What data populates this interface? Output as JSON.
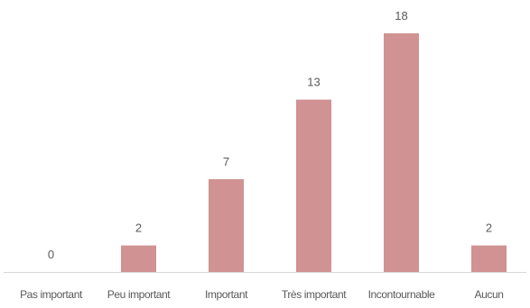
{
  "chart_data": {
    "type": "bar",
    "categories": [
      "Pas important",
      "Peu important",
      "Important",
      "Très important",
      "Incontournable",
      "Aucun"
    ],
    "values": [
      0,
      2,
      7,
      13,
      18,
      2
    ],
    "title": "",
    "xlabel": "",
    "ylabel": "",
    "ylim": [
      0,
      18
    ],
    "grid": false,
    "legend": "none",
    "data_labels": true,
    "colors": {
      "bar": "#d09292",
      "axis": "#d9d9d9",
      "text": "#595959"
    }
  }
}
